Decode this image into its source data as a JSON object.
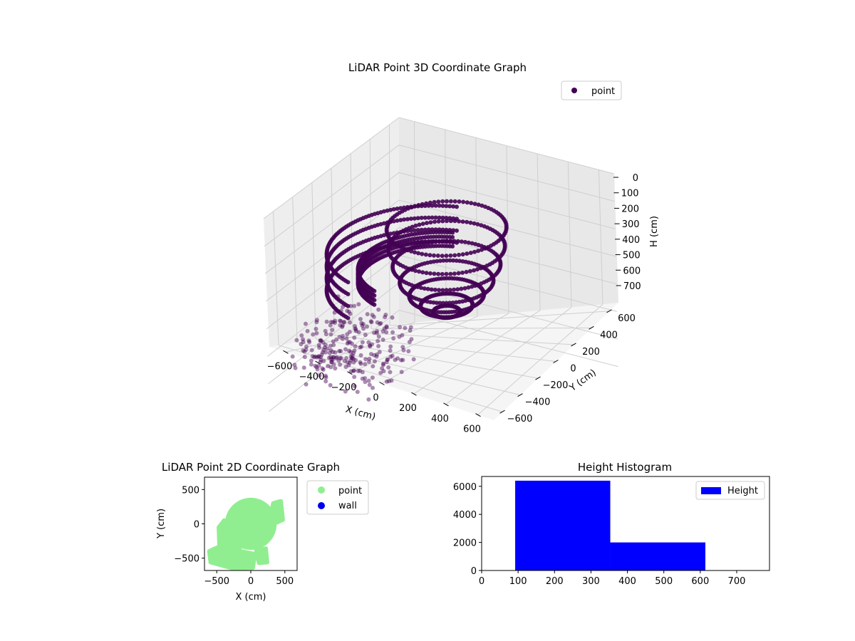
{
  "chart_data": [
    {
      "type": "scatter",
      "projection": "3d",
      "title": "LiDAR Point 3D Coordinate Graph",
      "xlabel": "X (cm)",
      "ylabel": "Y (cm)",
      "zlabel": "H (cm)",
      "xlim": [
        -700,
        700
      ],
      "ylim": [
        -700,
        700
      ],
      "zlim": [
        750,
        0
      ],
      "x_ticks": [
        "−600",
        "−400",
        "−200",
        "0",
        "200",
        "400",
        "600"
      ],
      "y_ticks": [
        "−600",
        "−400",
        "−200",
        "0",
        "200",
        "400",
        "600"
      ],
      "z_ticks": [
        "0",
        "100",
        "200",
        "300",
        "400",
        "500",
        "600",
        "700"
      ],
      "z_inverted": true,
      "grid": true,
      "legend_position": "top-right",
      "series": [
        {
          "name": "point",
          "color": "#440154",
          "shapes": [
            {
              "kind": "bowl",
              "center_x": 0,
              "center_y": 50,
              "radius": 330,
              "top_height": 110,
              "bottom_height": 420
            },
            {
              "kind": "arc-band",
              "center_x": 50,
              "center_y": -100,
              "radius": 560,
              "angle_from": 200,
              "angle_to": 345,
              "height_from": 230,
              "height_to": 360
            },
            {
              "kind": "arc-band",
              "center_x": 50,
              "center_y": -50,
              "radius": 430,
              "angle_from": 200,
              "angle_to": 340,
              "height_from": 280,
              "height_to": 330
            },
            {
              "kind": "scattered-rows",
              "x_range": [
                -620,
                -100
              ],
              "y_range": [
                -600,
                -50
              ],
              "height_range": [
                420,
                600
              ]
            }
          ]
        }
      ]
    },
    {
      "type": "scatter",
      "title": "LiDAR Point 2D Coordinate Graph",
      "xlabel": "X (cm)",
      "ylabel": "Y (cm)",
      "xlim": [
        -680,
        680
      ],
      "ylim": [
        -680,
        680
      ],
      "x_ticks": [
        -500,
        0,
        500
      ],
      "y_ticks": [
        -500,
        0,
        500
      ],
      "legend_position": "outside-right",
      "series": [
        {
          "name": "point",
          "color": "#90ee90",
          "regions": [
            {
              "kind": "disc",
              "center_x": 0,
              "center_y": 0,
              "radius": 380
            },
            {
              "kind": "polygon",
              "points": [
                [
                  -390,
                  50
                ],
                [
                  -470,
                  -50
                ],
                [
                  -460,
                  -330
                ],
                [
                  -610,
                  -400
                ],
                [
                  -590,
                  -560
                ],
                [
                  -260,
                  -650
                ],
                [
                  30,
                  -640
                ],
                [
                  60,
                  -440
                ],
                [
                  -150,
                  -400
                ]
              ]
            },
            {
              "kind": "polygon",
              "points": [
                [
                  330,
                  300
                ],
                [
                  440,
                  330
                ],
                [
                  470,
                  60
                ],
                [
                  380,
                  20
                ],
                [
                  300,
                  150
                ]
              ]
            },
            {
              "kind": "polygon",
              "points": [
                [
                  80,
                  -380
                ],
                [
                  220,
                  -360
                ],
                [
                  240,
                  -560
                ],
                [
                  120,
                  -570
                ]
              ]
            }
          ]
        },
        {
          "name": "wall",
          "color": "#0000ee",
          "points": []
        }
      ]
    },
    {
      "type": "bar",
      "title": "Height Histogram",
      "xlim": [
        0,
        790
      ],
      "ylim": [
        0,
        6700
      ],
      "x_ticks": [
        0,
        100,
        200,
        300,
        400,
        500,
        600,
        700
      ],
      "y_ticks": [
        0,
        2000,
        4000,
        6000
      ],
      "legend_position": "top-right",
      "series": [
        {
          "name": "Height",
          "color": "#0000ff",
          "bins": [
            {
              "from": 92,
              "to": 353,
              "count": 6400
            },
            {
              "from": 353,
              "to": 614,
              "count": 2000
            }
          ]
        }
      ]
    }
  ]
}
